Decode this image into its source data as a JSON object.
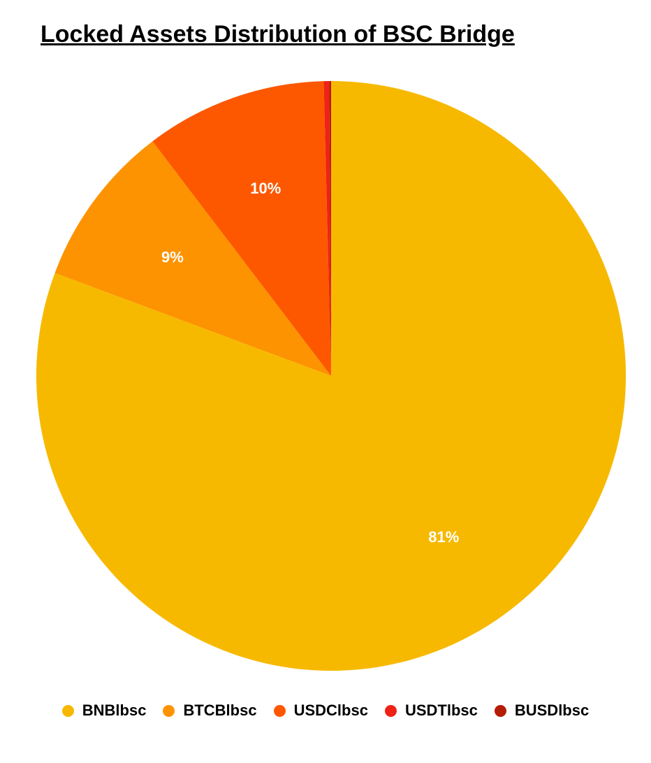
{
  "chart_data": {
    "type": "pie",
    "title": "Locked Assets Distribution of BSC Bridge",
    "categories": [
      "BNBlbsc",
      "BTCBlbsc",
      "USDClbsc",
      "USDTlbsc",
      "BUSDlbsc"
    ],
    "values": [
      81,
      9,
      10,
      0.3,
      0.1
    ],
    "value_labels": [
      "81%",
      "9%",
      "10%",
      null,
      null
    ],
    "colors": [
      "#f7b900",
      "#fd9300",
      "#fd5800",
      "#ee2216",
      "#b51c06"
    ]
  }
}
